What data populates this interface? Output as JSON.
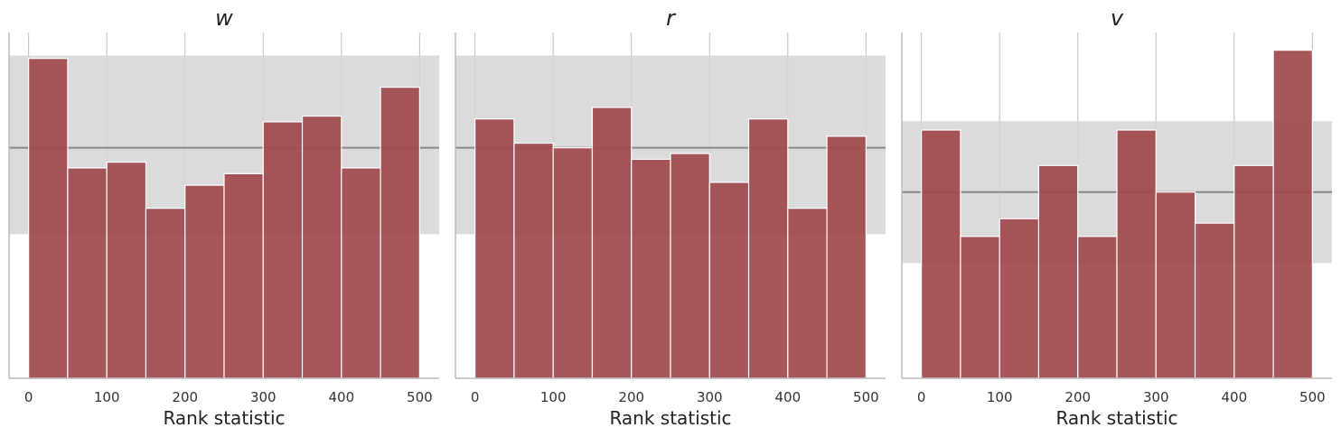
{
  "chart_data": [
    {
      "type": "bar",
      "title": "w",
      "xlabel": "Rank statistic",
      "ylabel": "",
      "xlim": [
        -25,
        525
      ],
      "xticks": [
        "0",
        "100",
        "200",
        "300",
        "400",
        "500"
      ],
      "bin_edges": [
        0,
        50,
        100,
        150,
        200,
        250,
        300,
        350,
        400,
        450,
        500
      ],
      "values": [
        55.5,
        36.5,
        37.5,
        29.5,
        33.5,
        35.5,
        44.5,
        45.5,
        36.5,
        50.5
      ],
      "ylim": [
        0,
        60
      ],
      "expected_count": 40,
      "band": [
        25,
        56
      ],
      "grid": true,
      "colors": {
        "bar": "#a0484c",
        "band": "#d5d5d5",
        "expected_line": "#888888",
        "grid": "#bfbfbf"
      }
    },
    {
      "type": "bar",
      "title": "r",
      "xlabel": "Rank statistic",
      "ylabel": "",
      "xlim": [
        -25,
        525
      ],
      "xticks": [
        "0",
        "100",
        "200",
        "300",
        "400",
        "500"
      ],
      "bin_edges": [
        0,
        50,
        100,
        150,
        200,
        250,
        300,
        350,
        400,
        450,
        500
      ],
      "values": [
        45,
        40.8,
        40,
        47,
        38,
        39,
        34,
        45,
        29.5,
        42
      ],
      "ylim": [
        0,
        60
      ],
      "expected_count": 40,
      "band": [
        25,
        56
      ],
      "grid": true,
      "colors": {
        "bar": "#a0484c",
        "band": "#d5d5d5",
        "expected_line": "#888888",
        "grid": "#bfbfbf"
      }
    },
    {
      "type": "bar",
      "title": "v",
      "xlabel": "Rank statistic",
      "ylabel": "",
      "xlim": [
        -25,
        525
      ],
      "xticks": [
        "0",
        "100",
        "200",
        "300",
        "400",
        "500"
      ],
      "bin_edges": [
        0,
        50,
        100,
        150,
        200,
        250,
        300,
        350,
        400,
        450,
        500
      ],
      "values": [
        28,
        16,
        18,
        24,
        16,
        28,
        21,
        17.5,
        24,
        37
      ],
      "ylim": [
        0,
        39
      ],
      "expected_count": 21,
      "band": [
        13,
        29
      ],
      "grid": true,
      "colors": {
        "bar": "#a0484c",
        "band": "#d5d5d5",
        "expected_line": "#888888",
        "grid": "#bfbfbf"
      }
    }
  ]
}
